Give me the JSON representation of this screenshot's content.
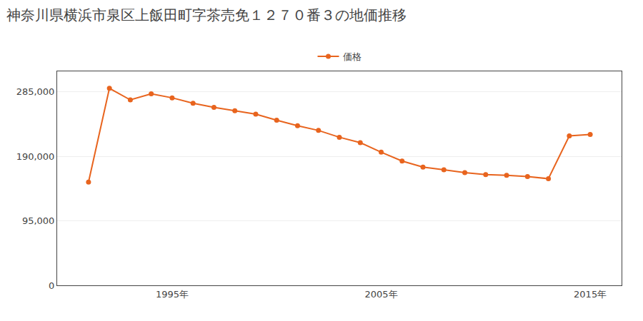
{
  "chart_data": {
    "type": "line",
    "title": "神奈川県横浜市泉区上飯田町字茶売免１２７０番３の地価推移",
    "x": [
      1991,
      1992,
      1993,
      1994,
      1995,
      1996,
      1997,
      1998,
      1999,
      2000,
      2001,
      2002,
      2003,
      2004,
      2005,
      2006,
      2007,
      2008,
      2009,
      2010,
      2011,
      2012,
      2013,
      2014,
      2015
    ],
    "series": [
      {
        "name": "価格",
        "color": "#e8641e",
        "marker": "circle",
        "values": [
          152000,
          290000,
          273000,
          282000,
          276000,
          268000,
          262000,
          257000,
          252000,
          243000,
          235000,
          228000,
          218000,
          210000,
          196000,
          183000,
          174000,
          170000,
          166000,
          163000,
          162000,
          160000,
          157000,
          220000,
          222000
        ]
      }
    ],
    "xlim": [
      1989.5,
      2016.5
    ],
    "xticks": [
      {
        "value": 1995,
        "label": "1995年"
      },
      {
        "value": 2005,
        "label": "2005年"
      },
      {
        "value": 2015,
        "label": "2015年"
      }
    ],
    "ylim": [
      0,
      315000
    ],
    "yticks": [
      0,
      {
        "value": 95000,
        "label": "95,000"
      },
      {
        "value": 190000,
        "label": "190,000"
      },
      {
        "value": 285000,
        "label": "285,000"
      }
    ],
    "grid": "y",
    "legend": "top"
  }
}
